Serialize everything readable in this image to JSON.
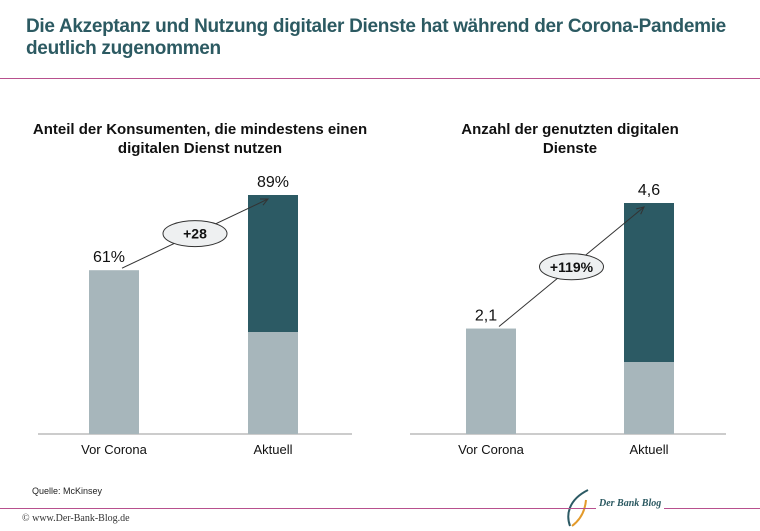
{
  "title": "Die Akzeptanz und Nutzung digitaler Dienste hat während der Corona-Pandemie deutlich zugenommen",
  "source": "Quelle: McKinsey",
  "footer": "© www.Der-Bank-Blog.de",
  "logo_text": "Der Bank Blog",
  "colors": {
    "base": "#a7b6bb",
    "increase": "#2c5a64",
    "title": "#2c5a62",
    "rule": "#b8508e"
  },
  "chart_data": [
    {
      "type": "bar",
      "title": "Anteil der Konsumenten, die mindestens einen digitalen Dienst nutzen",
      "categories": [
        "Vor Corona",
        "Aktuell"
      ],
      "values": [
        61,
        89
      ],
      "base_segment": 61,
      "labels": [
        "61%",
        "89%"
      ],
      "annotation": "+28",
      "ylim": [
        0,
        95
      ]
    },
    {
      "type": "bar",
      "title": "Anzahl der genutzten digitalen Dienste",
      "categories": [
        "Vor Corona",
        "Aktuell"
      ],
      "values": [
        2.1,
        4.6
      ],
      "base_segment": 2.1,
      "labels": [
        "2,1",
        "4,6"
      ],
      "annotation": "+119%",
      "ylim": [
        0,
        4.9
      ]
    }
  ]
}
